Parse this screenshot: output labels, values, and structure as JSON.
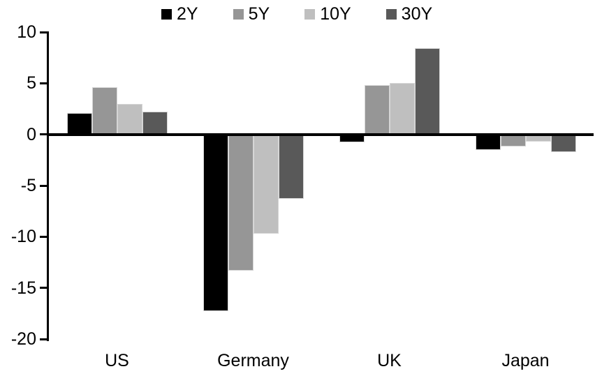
{
  "chart_data": {
    "type": "bar",
    "title": "",
    "categories": [
      "US",
      "Germany",
      "UK",
      "Japan"
    ],
    "series": [
      {
        "name": "2Y",
        "color": "#000000",
        "values": [
          2.1,
          -17.3,
          -0.8,
          -1.5
        ]
      },
      {
        "name": "5Y",
        "color": "#969696",
        "values": [
          4.6,
          -13.3,
          4.8,
          -1.2
        ]
      },
      {
        "name": "10Y",
        "color": "#bfbfbf",
        "values": [
          3.0,
          -9.7,
          5.0,
          -0.7
        ]
      },
      {
        "name": "30Y",
        "color": "#595959",
        "values": [
          2.2,
          -6.3,
          8.4,
          -1.7
        ]
      }
    ],
    "ylim": [
      -20,
      10
    ],
    "yticks": [
      10,
      5,
      0,
      -5,
      -10,
      -15,
      -20
    ],
    "xlabel": "",
    "ylabel": "",
    "grid": false,
    "legend_position": "top",
    "axis_color": "#000000",
    "background_color": "#ffffff"
  }
}
